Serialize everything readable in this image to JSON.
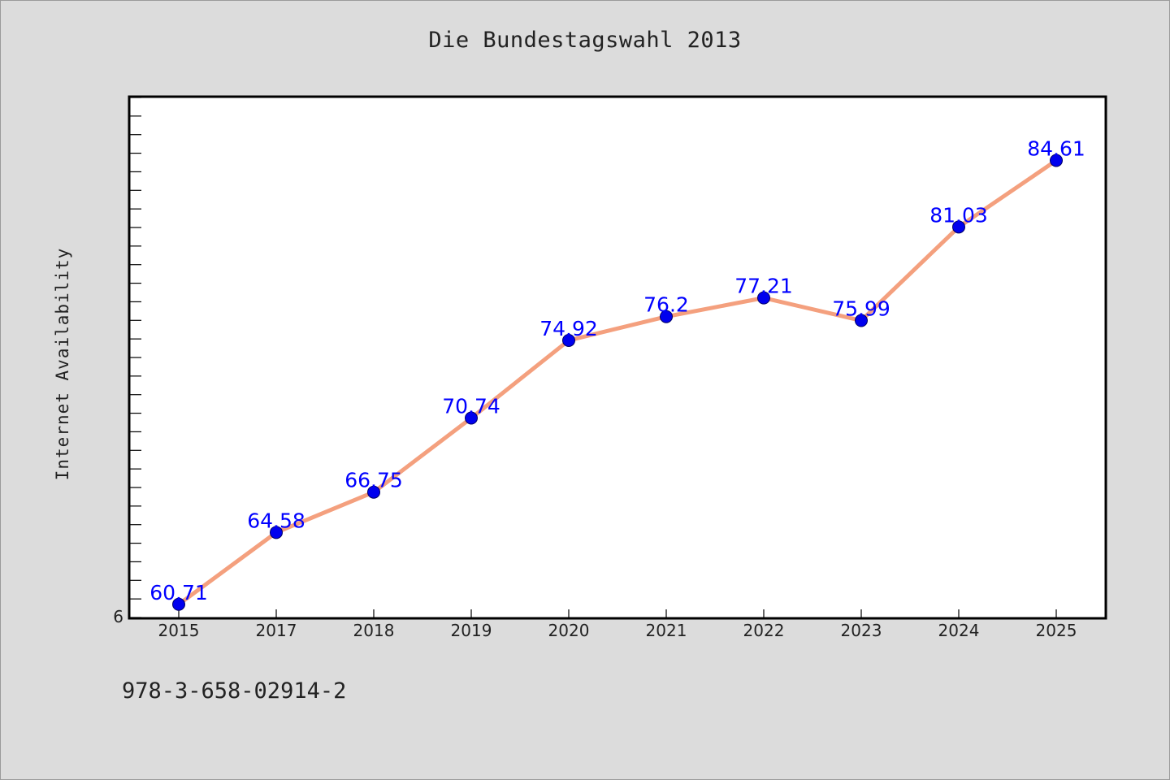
{
  "header": {
    "title": "Die Bundestagswahl 2013"
  },
  "footer": {
    "code": "978-3-658-02914-2"
  },
  "chart_data": {
    "type": "line",
    "title": "Die Bundestagswahl 2013",
    "xlabel": "",
    "ylabel": "Internet Availability",
    "categories": [
      "2015",
      "2017",
      "2018",
      "2019",
      "2020",
      "2021",
      "2022",
      "2023",
      "2024",
      "2025"
    ],
    "values": [
      60.71,
      64.58,
      66.75,
      70.74,
      74.92,
      76.2,
      77.21,
      75.99,
      81.03,
      84.61
    ],
    "data_labels": [
      "60.71",
      "64.58",
      "66.75",
      "70.74",
      "74.92",
      "76.2",
      "77.21",
      "75.99",
      "81.03",
      "84.61"
    ],
    "y_tick_labels": [
      "6"
    ],
    "ylim": [
      60,
      88
    ],
    "grid": false,
    "colors": {
      "line": "#f4a07e",
      "marker": "#0000ee",
      "label": "#0000ff",
      "background": "#dcdcdc",
      "plot_area": "#ffffff"
    }
  }
}
